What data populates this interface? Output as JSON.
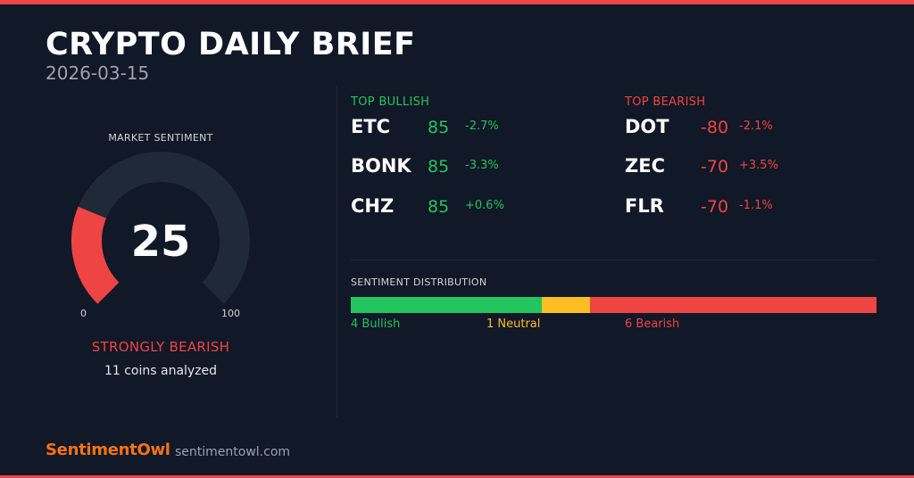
{
  "header": {
    "title": "CRYPTO DAILY BRIEF",
    "date": "2026-03-15"
  },
  "gauge": {
    "label": "MARKET SENTIMENT",
    "value": 25,
    "display_value": "25",
    "min_label": "0",
    "max_label": "100",
    "sentiment": "STRONGLY BEARISH",
    "coins_analyzed": "11 coins analyzed",
    "track_color": "#1f2937",
    "fill_color": "#ef4444"
  },
  "bullish": {
    "title": "TOP BULLISH",
    "items": [
      {
        "symbol": "ETC",
        "score": "85",
        "change": "-2.7%"
      },
      {
        "symbol": "BONK",
        "score": "85",
        "change": "-3.3%"
      },
      {
        "symbol": "CHZ",
        "score": "85",
        "change": "+0.6%"
      }
    ]
  },
  "bearish": {
    "title": "TOP BEARISH",
    "items": [
      {
        "symbol": "DOT",
        "score": "-80",
        "change": "-2.1%"
      },
      {
        "symbol": "ZEC",
        "score": "-70",
        "change": "+3.5%"
      },
      {
        "symbol": "FLR",
        "score": "-70",
        "change": "-1.1%"
      }
    ]
  },
  "distribution": {
    "title": "SENTIMENT DISTRIBUTION",
    "bullish_count": 4,
    "neutral_count": 1,
    "bearish_count": 6,
    "bullish_label": "4 Bullish",
    "neutral_label": "1 Neutral",
    "bearish_label": "6 Bearish"
  },
  "footer": {
    "brand": "SentimentOwl",
    "url": "sentimentowl.com"
  },
  "colors": {
    "background": "#111827",
    "bullish": "#22c55e",
    "neutral": "#fbbf24",
    "bearish": "#ef4444",
    "brand": "#f97316"
  }
}
